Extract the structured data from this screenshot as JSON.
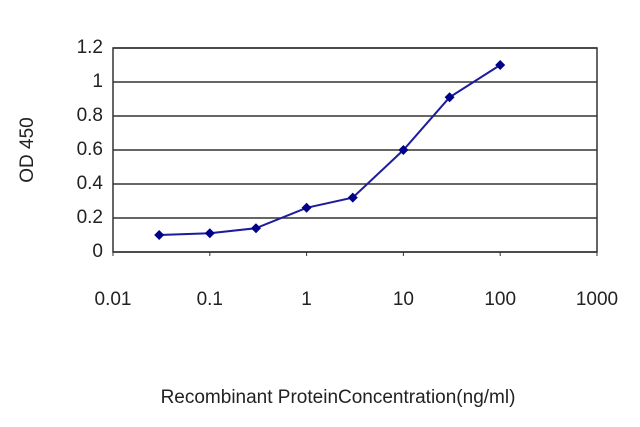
{
  "chart_data": {
    "type": "line",
    "x_label": "Recombinant ProteinConcentration(ng/ml)",
    "y_label": "OD 450",
    "x": [
      0.03,
      0.1,
      0.3,
      1,
      3,
      10,
      30,
      100
    ],
    "series": [
      {
        "color": "#1c1c9c",
        "values": [
          0.1,
          0.11,
          0.14,
          0.26,
          0.32,
          0.6,
          0.91,
          1.1
        ]
      }
    ],
    "xlim": [
      0.01,
      1000
    ],
    "xticks": [
      0.01,
      0.1,
      1,
      10,
      100,
      1000
    ],
    "xscale": "log",
    "ylim": [
      0,
      1.2
    ],
    "yticks": [
      0,
      0.2,
      0.4,
      0.6,
      0.8,
      1,
      1.2
    ],
    "grid": true
  }
}
